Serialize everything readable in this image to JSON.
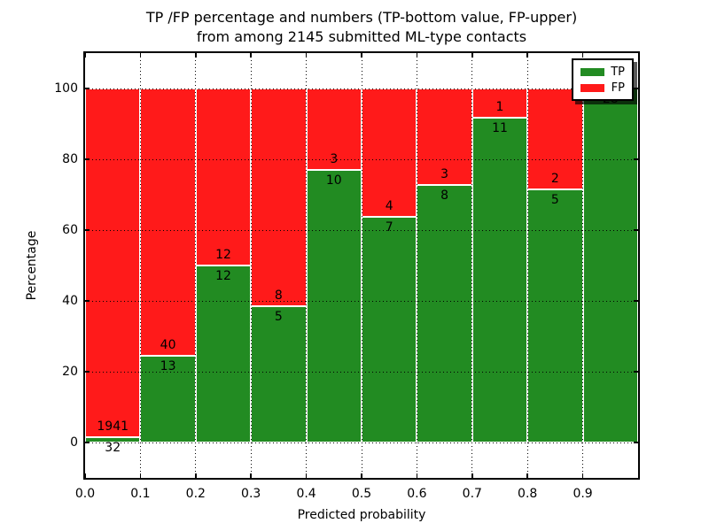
{
  "title": {
    "line1": "TP /FP percentage and numbers (TP-bottom value, FP-upper)",
    "line2": "from among 2145 submitted ML-type contacts"
  },
  "axes": {
    "xlabel": "Predicted probability",
    "ylabel": "Percentage"
  },
  "legend": {
    "items": [
      {
        "label": "TP",
        "color": "#228B22"
      },
      {
        "label": "FP",
        "color": "#ff1a1a"
      }
    ]
  },
  "colors": {
    "tp_green": "#228B22",
    "fp_red": "#ff1a1a",
    "text": "#000000",
    "background": "#ffffff"
  },
  "chart_data": {
    "type": "bar",
    "stacked": true,
    "normalized_to_percent": true,
    "title": "TP /FP percentage and numbers (TP-bottom value, FP-upper)\nfrom among 2145 submitted ML-type contacts",
    "xlabel": "Predicted probability",
    "ylabel": "Percentage",
    "xlim": [
      0.0,
      1.0
    ],
    "ylim": [
      -10,
      110
    ],
    "grid": true,
    "legend_position": "upper right",
    "total_contacts": 2145,
    "bins": [
      "0.0-0.1",
      "0.1-0.2",
      "0.2-0.3",
      "0.3-0.4",
      "0.4-0.5",
      "0.5-0.6",
      "0.6-0.7",
      "0.7-0.8",
      "0.8-0.9",
      "0.9-1.0"
    ],
    "x_tick_values": [
      0.0,
      0.1,
      0.2,
      0.3,
      0.4,
      0.5,
      0.6,
      0.7,
      0.8,
      0.9
    ],
    "x_tick_labels": [
      "0.0",
      "0.1",
      "0.2",
      "0.3",
      "0.4",
      "0.5",
      "0.6",
      "0.7",
      "0.8",
      "0.9"
    ],
    "y_tick_values": [
      0,
      20,
      40,
      60,
      80,
      100
    ],
    "y_tick_labels": [
      "0",
      "20",
      "40",
      "60",
      "80",
      "100"
    ],
    "series": [
      {
        "name": "TP",
        "color": "#228B22",
        "counts": [
          32,
          13,
          12,
          5,
          10,
          7,
          8,
          11,
          5,
          28
        ],
        "percent": [
          1.62,
          24.53,
          50.0,
          38.46,
          76.92,
          63.64,
          72.73,
          91.67,
          71.43,
          100.0
        ]
      },
      {
        "name": "FP",
        "color": "#ff1a1a",
        "counts": [
          1941,
          40,
          12,
          8,
          3,
          4,
          3,
          1,
          2,
          0
        ],
        "percent": [
          98.38,
          75.47,
          50.0,
          61.54,
          23.08,
          36.36,
          27.27,
          8.33,
          28.57,
          0.0
        ]
      }
    ],
    "bar_value_labels": {
      "tp": [
        "32",
        "13",
        "12",
        "5",
        "10",
        "7",
        "8",
        "11",
        "5",
        "28"
      ],
      "fp": [
        "1941",
        "40",
        "12",
        "8",
        "3",
        "4",
        "3",
        "1",
        "2",
        ""
      ]
    }
  }
}
